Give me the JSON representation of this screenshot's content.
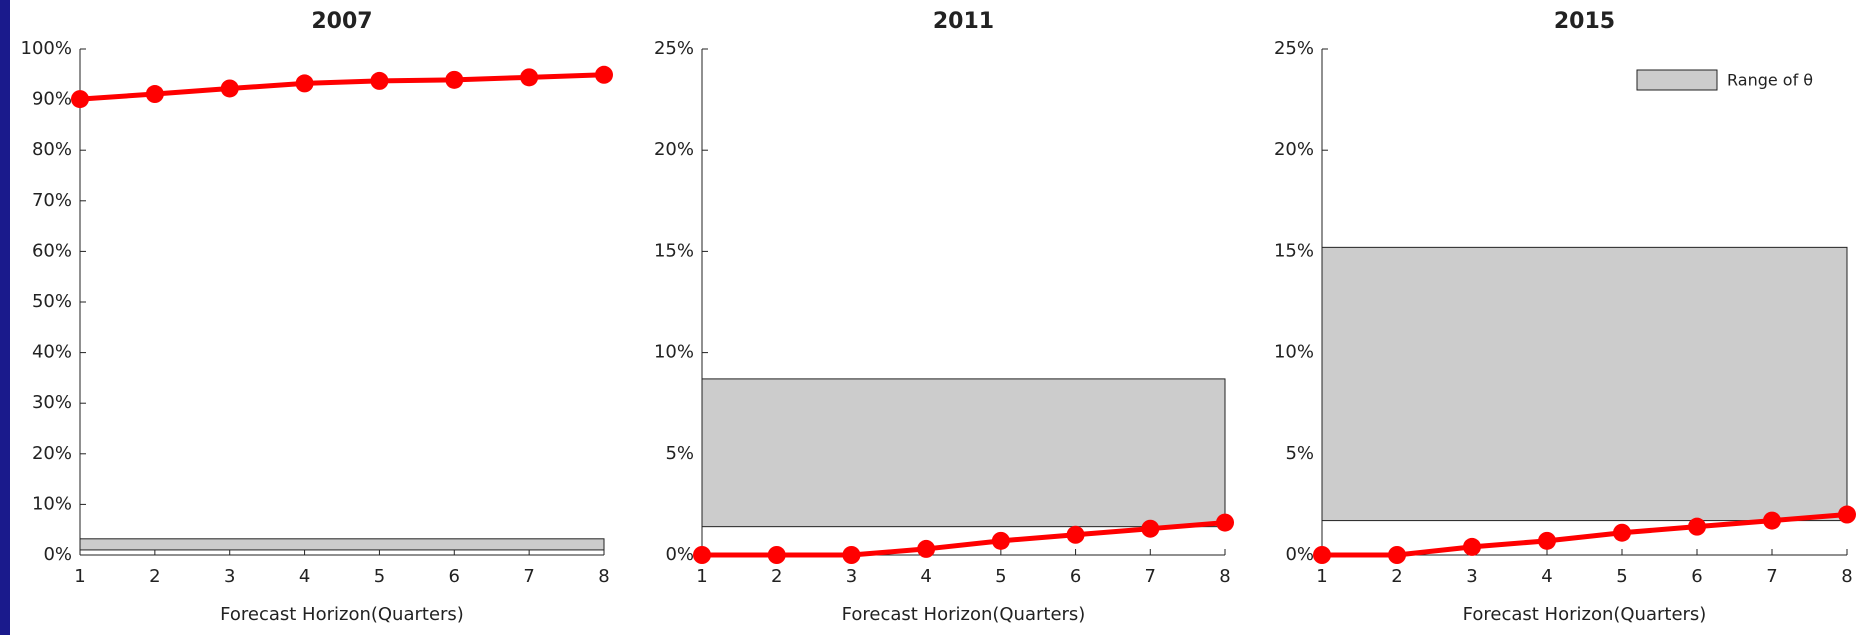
{
  "chart_data": [
    {
      "type": "line",
      "title": "2007",
      "xlabel": "Forecast Horizon(Quarters)",
      "x": [
        1,
        2,
        3,
        4,
        5,
        6,
        7,
        8
      ],
      "xlim": [
        1,
        8
      ],
      "xticks": [
        1,
        2,
        3,
        4,
        5,
        6,
        7,
        8
      ],
      "ylim": [
        0,
        100
      ],
      "yticks": [
        {
          "value": 0,
          "label": "0%"
        },
        {
          "value": 10,
          "label": "10%"
        },
        {
          "value": 20,
          "label": "20%"
        },
        {
          "value": 30,
          "label": "30%"
        },
        {
          "value": 40,
          "label": "40%"
        },
        {
          "value": 50,
          "label": "50%"
        },
        {
          "value": 60,
          "label": "60%"
        },
        {
          "value": 70,
          "label": "70%"
        },
        {
          "value": 80,
          "label": "80%"
        },
        {
          "value": 90,
          "label": "90%"
        },
        {
          "value": 100,
          "label": "100%"
        }
      ],
      "values": [
        90.1,
        91.1,
        92.2,
        93.2,
        93.7,
        93.9,
        94.4,
        94.9
      ],
      "color": "#ff0000",
      "range": {
        "low": 1.0,
        "high": 3.2,
        "color": "#cccccc"
      }
    },
    {
      "type": "line",
      "title": "2011",
      "xlabel": "Forecast Horizon(Quarters)",
      "x": [
        1,
        2,
        3,
        4,
        5,
        6,
        7,
        8
      ],
      "xlim": [
        1,
        8
      ],
      "xticks": [
        1,
        2,
        3,
        4,
        5,
        6,
        7,
        8
      ],
      "ylim": [
        0,
        25
      ],
      "yticks": [
        {
          "value": 0,
          "label": "0%"
        },
        {
          "value": 5,
          "label": "5%"
        },
        {
          "value": 10,
          "label": "10%"
        },
        {
          "value": 15,
          "label": "15%"
        },
        {
          "value": 20,
          "label": "20%"
        },
        {
          "value": 25,
          "label": "25%"
        }
      ],
      "values": [
        0.0,
        0.0,
        0.0,
        0.3,
        0.7,
        1.0,
        1.3,
        1.6
      ],
      "color": "#ff0000",
      "range": {
        "low": 1.4,
        "high": 8.7,
        "color": "#cccccc"
      }
    },
    {
      "type": "line",
      "title": "2015",
      "xlabel": "Forecast Horizon(Quarters)",
      "x": [
        1,
        2,
        3,
        4,
        5,
        6,
        7,
        8
      ],
      "xlim": [
        1,
        8
      ],
      "xticks": [
        1,
        2,
        3,
        4,
        5,
        6,
        7,
        8
      ],
      "ylim": [
        0,
        25
      ],
      "yticks": [
        {
          "value": 0,
          "label": "0%"
        },
        {
          "value": 5,
          "label": "5%"
        },
        {
          "value": 10,
          "label": "10%"
        },
        {
          "value": 15,
          "label": "15%"
        },
        {
          "value": 20,
          "label": "20%"
        },
        {
          "value": 25,
          "label": "25%"
        }
      ],
      "values": [
        0.0,
        0.0,
        0.4,
        0.7,
        1.1,
        1.4,
        1.7,
        2.0
      ],
      "color": "#ff0000",
      "range": {
        "name": "Range of θ",
        "low": 1.7,
        "high": 15.2,
        "color": "#cccccc"
      },
      "legend": "upper right"
    }
  ]
}
